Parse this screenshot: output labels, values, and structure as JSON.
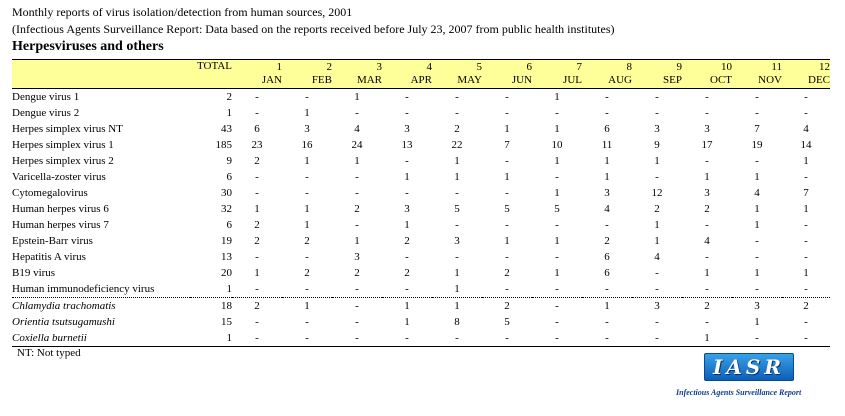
{
  "header": {
    "title": "Monthly reports of virus isolation/detection from human sources, 2001",
    "subtitle": "(Infectious Agents Surveillance Report: Data based on the reports received before July 23, 2007 from public health institutes)",
    "section": "Herpesviruses and others"
  },
  "table": {
    "total_label": "TOTAL",
    "months": [
      {
        "num": "1",
        "name": "JAN"
      },
      {
        "num": "2",
        "name": "FEB"
      },
      {
        "num": "3",
        "name": "MAR"
      },
      {
        "num": "4",
        "name": "APR"
      },
      {
        "num": "5",
        "name": "MAY"
      },
      {
        "num": "6",
        "name": "JUN"
      },
      {
        "num": "7",
        "name": "JUL"
      },
      {
        "num": "8",
        "name": "AUG"
      },
      {
        "num": "9",
        "name": "SEP"
      },
      {
        "num": "10",
        "name": "OCT"
      },
      {
        "num": "11",
        "name": "NOV"
      },
      {
        "num": "12",
        "name": "DEC"
      }
    ],
    "rows": [
      {
        "name": "Dengue virus 1",
        "total": "2",
        "m": [
          "-",
          "-",
          "1",
          "-",
          "-",
          "-",
          "1",
          "-",
          "-",
          "-",
          "-",
          "-"
        ]
      },
      {
        "name": "Dengue virus 2",
        "total": "1",
        "m": [
          "-",
          "1",
          "-",
          "-",
          "-",
          "-",
          "-",
          "-",
          "-",
          "-",
          "-",
          "-"
        ]
      },
      {
        "name": "Herpes simplex virus NT",
        "total": "43",
        "m": [
          "6",
          "3",
          "4",
          "3",
          "2",
          "1",
          "1",
          "6",
          "3",
          "3",
          "7",
          "4"
        ]
      },
      {
        "name": "Herpes simplex virus 1",
        "total": "185",
        "m": [
          "23",
          "16",
          "24",
          "13",
          "22",
          "7",
          "10",
          "11",
          "9",
          "17",
          "19",
          "14"
        ]
      },
      {
        "name": "Herpes simplex virus 2",
        "total": "9",
        "m": [
          "2",
          "1",
          "1",
          "-",
          "1",
          "-",
          "1",
          "1",
          "1",
          "-",
          "-",
          "1"
        ]
      },
      {
        "name": "Varicella-zoster virus",
        "total": "6",
        "m": [
          "-",
          "-",
          "-",
          "1",
          "1",
          "1",
          "-",
          "1",
          "-",
          "1",
          "1",
          "-"
        ]
      },
      {
        "name": "Cytomegalovirus",
        "total": "30",
        "m": [
          "-",
          "-",
          "-",
          "-",
          "-",
          "-",
          "1",
          "3",
          "12",
          "3",
          "4",
          "7"
        ]
      },
      {
        "name": "Human herpes virus 6",
        "total": "32",
        "m": [
          "1",
          "1",
          "2",
          "3",
          "5",
          "5",
          "5",
          "4",
          "2",
          "2",
          "1",
          "1"
        ]
      },
      {
        "name": "Human herpes virus 7",
        "total": "6",
        "m": [
          "2",
          "1",
          "-",
          "1",
          "-",
          "-",
          "-",
          "-",
          "1",
          "-",
          "1",
          "-"
        ]
      },
      {
        "name": "Epstein-Barr virus",
        "total": "19",
        "m": [
          "2",
          "2",
          "1",
          "2",
          "3",
          "1",
          "1",
          "2",
          "1",
          "4",
          "-",
          "-"
        ]
      },
      {
        "name": "Hepatitis A virus",
        "total": "13",
        "m": [
          "-",
          "-",
          "3",
          "-",
          "-",
          "-",
          "-",
          "6",
          "4",
          "-",
          "-",
          "-"
        ]
      },
      {
        "name": "B19 virus",
        "total": "20",
        "m": [
          "1",
          "2",
          "2",
          "2",
          "1",
          "2",
          "1",
          "6",
          "-",
          "1",
          "1",
          "1"
        ]
      },
      {
        "name": "Human immunodeficiency virus",
        "total": "1",
        "m": [
          "-",
          "-",
          "-",
          "-",
          "1",
          "-",
          "-",
          "-",
          "-",
          "-",
          "-",
          "-"
        ]
      },
      {
        "name": "Chlamydia trachomatis",
        "total": "18",
        "m": [
          "2",
          "1",
          "-",
          "1",
          "1",
          "2",
          "-",
          "1",
          "3",
          "2",
          "3",
          "2"
        ],
        "italic": true
      },
      {
        "name": "Orientia tsutsugamushi",
        "total": "15",
        "m": [
          "-",
          "-",
          "-",
          "1",
          "8",
          "5",
          "-",
          "-",
          "-",
          "-",
          "1",
          "-"
        ],
        "italic": true
      },
      {
        "name": "Coxiella burnetii",
        "total": "1",
        "m": [
          "-",
          "-",
          "-",
          "-",
          "-",
          "-",
          "-",
          "-",
          "-",
          "1",
          "-",
          "-"
        ],
        "italic": true
      }
    ]
  },
  "footnote": "NT: Not typed",
  "logo": {
    "text": "IASR",
    "subtitle": "Infectious Agents Surveillance Report",
    "colors": {
      "fill": "#1a7fd4",
      "text": "#ffffff",
      "subtitle": "#0b3d91"
    }
  },
  "colors": {
    "header_band": "#ffff99"
  }
}
